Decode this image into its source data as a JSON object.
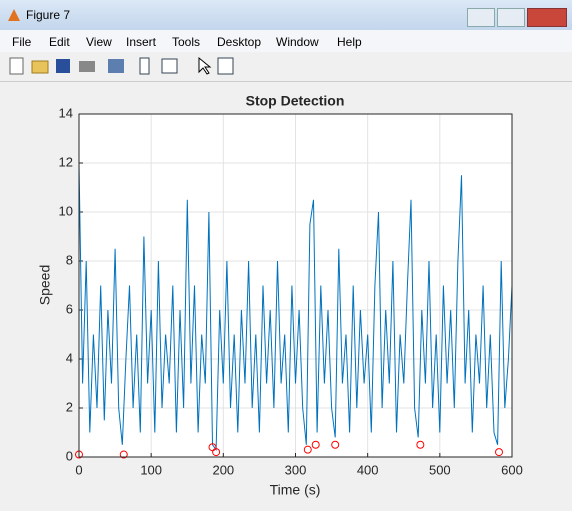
{
  "window": {
    "title": "Figure 7",
    "menu": [
      "File",
      "Edit",
      "View",
      "Insert",
      "Tools",
      "Desktop",
      "Window",
      "Help"
    ]
  },
  "chart_data": {
    "type": "line",
    "title": "Stop Detection",
    "xlabel": "Time (s)",
    "ylabel": "Speed",
    "x": [
      0,
      5,
      10,
      15,
      20,
      25,
      30,
      35,
      40,
      45,
      50,
      55,
      60,
      65,
      70,
      75,
      80,
      85,
      90,
      95,
      100,
      105,
      110,
      115,
      120,
      125,
      130,
      135,
      140,
      145,
      150,
      155,
      160,
      165,
      170,
      175,
      180,
      185,
      190,
      195,
      200,
      205,
      210,
      215,
      220,
      225,
      230,
      235,
      240,
      245,
      250,
      255,
      260,
      265,
      270,
      275,
      280,
      285,
      290,
      295,
      300,
      305,
      310,
      315,
      320,
      325,
      330,
      335,
      340,
      345,
      350,
      355,
      360,
      365,
      370,
      375,
      380,
      385,
      390,
      395,
      400,
      405,
      410,
      415,
      420,
      425,
      430,
      435,
      440,
      445,
      450,
      455,
      460,
      465,
      470,
      475,
      480,
      485,
      490,
      495,
      500,
      505,
      510,
      515,
      520,
      525,
      530,
      535,
      540,
      545,
      550,
      555,
      560,
      565,
      570,
      575,
      580,
      585,
      590,
      595,
      600
    ],
    "values": [
      12,
      3,
      8,
      1,
      5,
      2,
      7,
      1.5,
      6,
      3,
      8.5,
      2,
      0.5,
      4,
      7,
      2,
      5,
      1,
      9,
      3,
      6,
      1,
      8,
      2,
      5,
      3,
      7,
      1,
      6,
      2,
      10.5,
      3,
      7,
      1,
      5,
      3,
      10,
      0.5,
      0.3,
      6,
      3,
      8,
      2,
      5,
      1,
      6,
      3,
      8,
      2,
      5,
      1,
      7,
      3,
      6,
      2,
      8,
      3,
      5,
      1,
      7,
      3,
      6,
      2,
      0.5,
      9.5,
      10.5,
      1,
      7,
      3,
      6,
      2,
      0.8,
      8.5,
      3,
      5,
      1,
      7,
      2,
      6,
      3,
      5,
      1,
      7,
      10,
      2,
      6,
      3,
      8,
      1,
      5,
      3,
      7,
      10.5,
      2,
      0.8,
      6,
      3,
      8,
      2,
      5,
      1,
      7,
      3,
      6,
      2,
      8,
      11.5,
      3,
      6,
      1,
      5,
      3,
      7,
      2,
      5,
      1,
      0.5,
      8,
      2,
      4,
      7
    ],
    "color": "#0072bd",
    "markers": {
      "x": [
        0,
        62,
        185,
        190,
        317,
        328,
        355,
        473,
        582
      ],
      "values": [
        0.1,
        0.1,
        0.4,
        0.2,
        0.3,
        0.5,
        0.5,
        0.5,
        0.2
      ],
      "color": "#ff0000"
    },
    "xlim": [
      0,
      600
    ],
    "ylim": [
      0,
      14
    ],
    "xticks": [
      0,
      100,
      200,
      300,
      400,
      500,
      600
    ],
    "yticks": [
      0,
      2,
      4,
      6,
      8,
      10,
      12,
      14
    ],
    "grid": true
  }
}
